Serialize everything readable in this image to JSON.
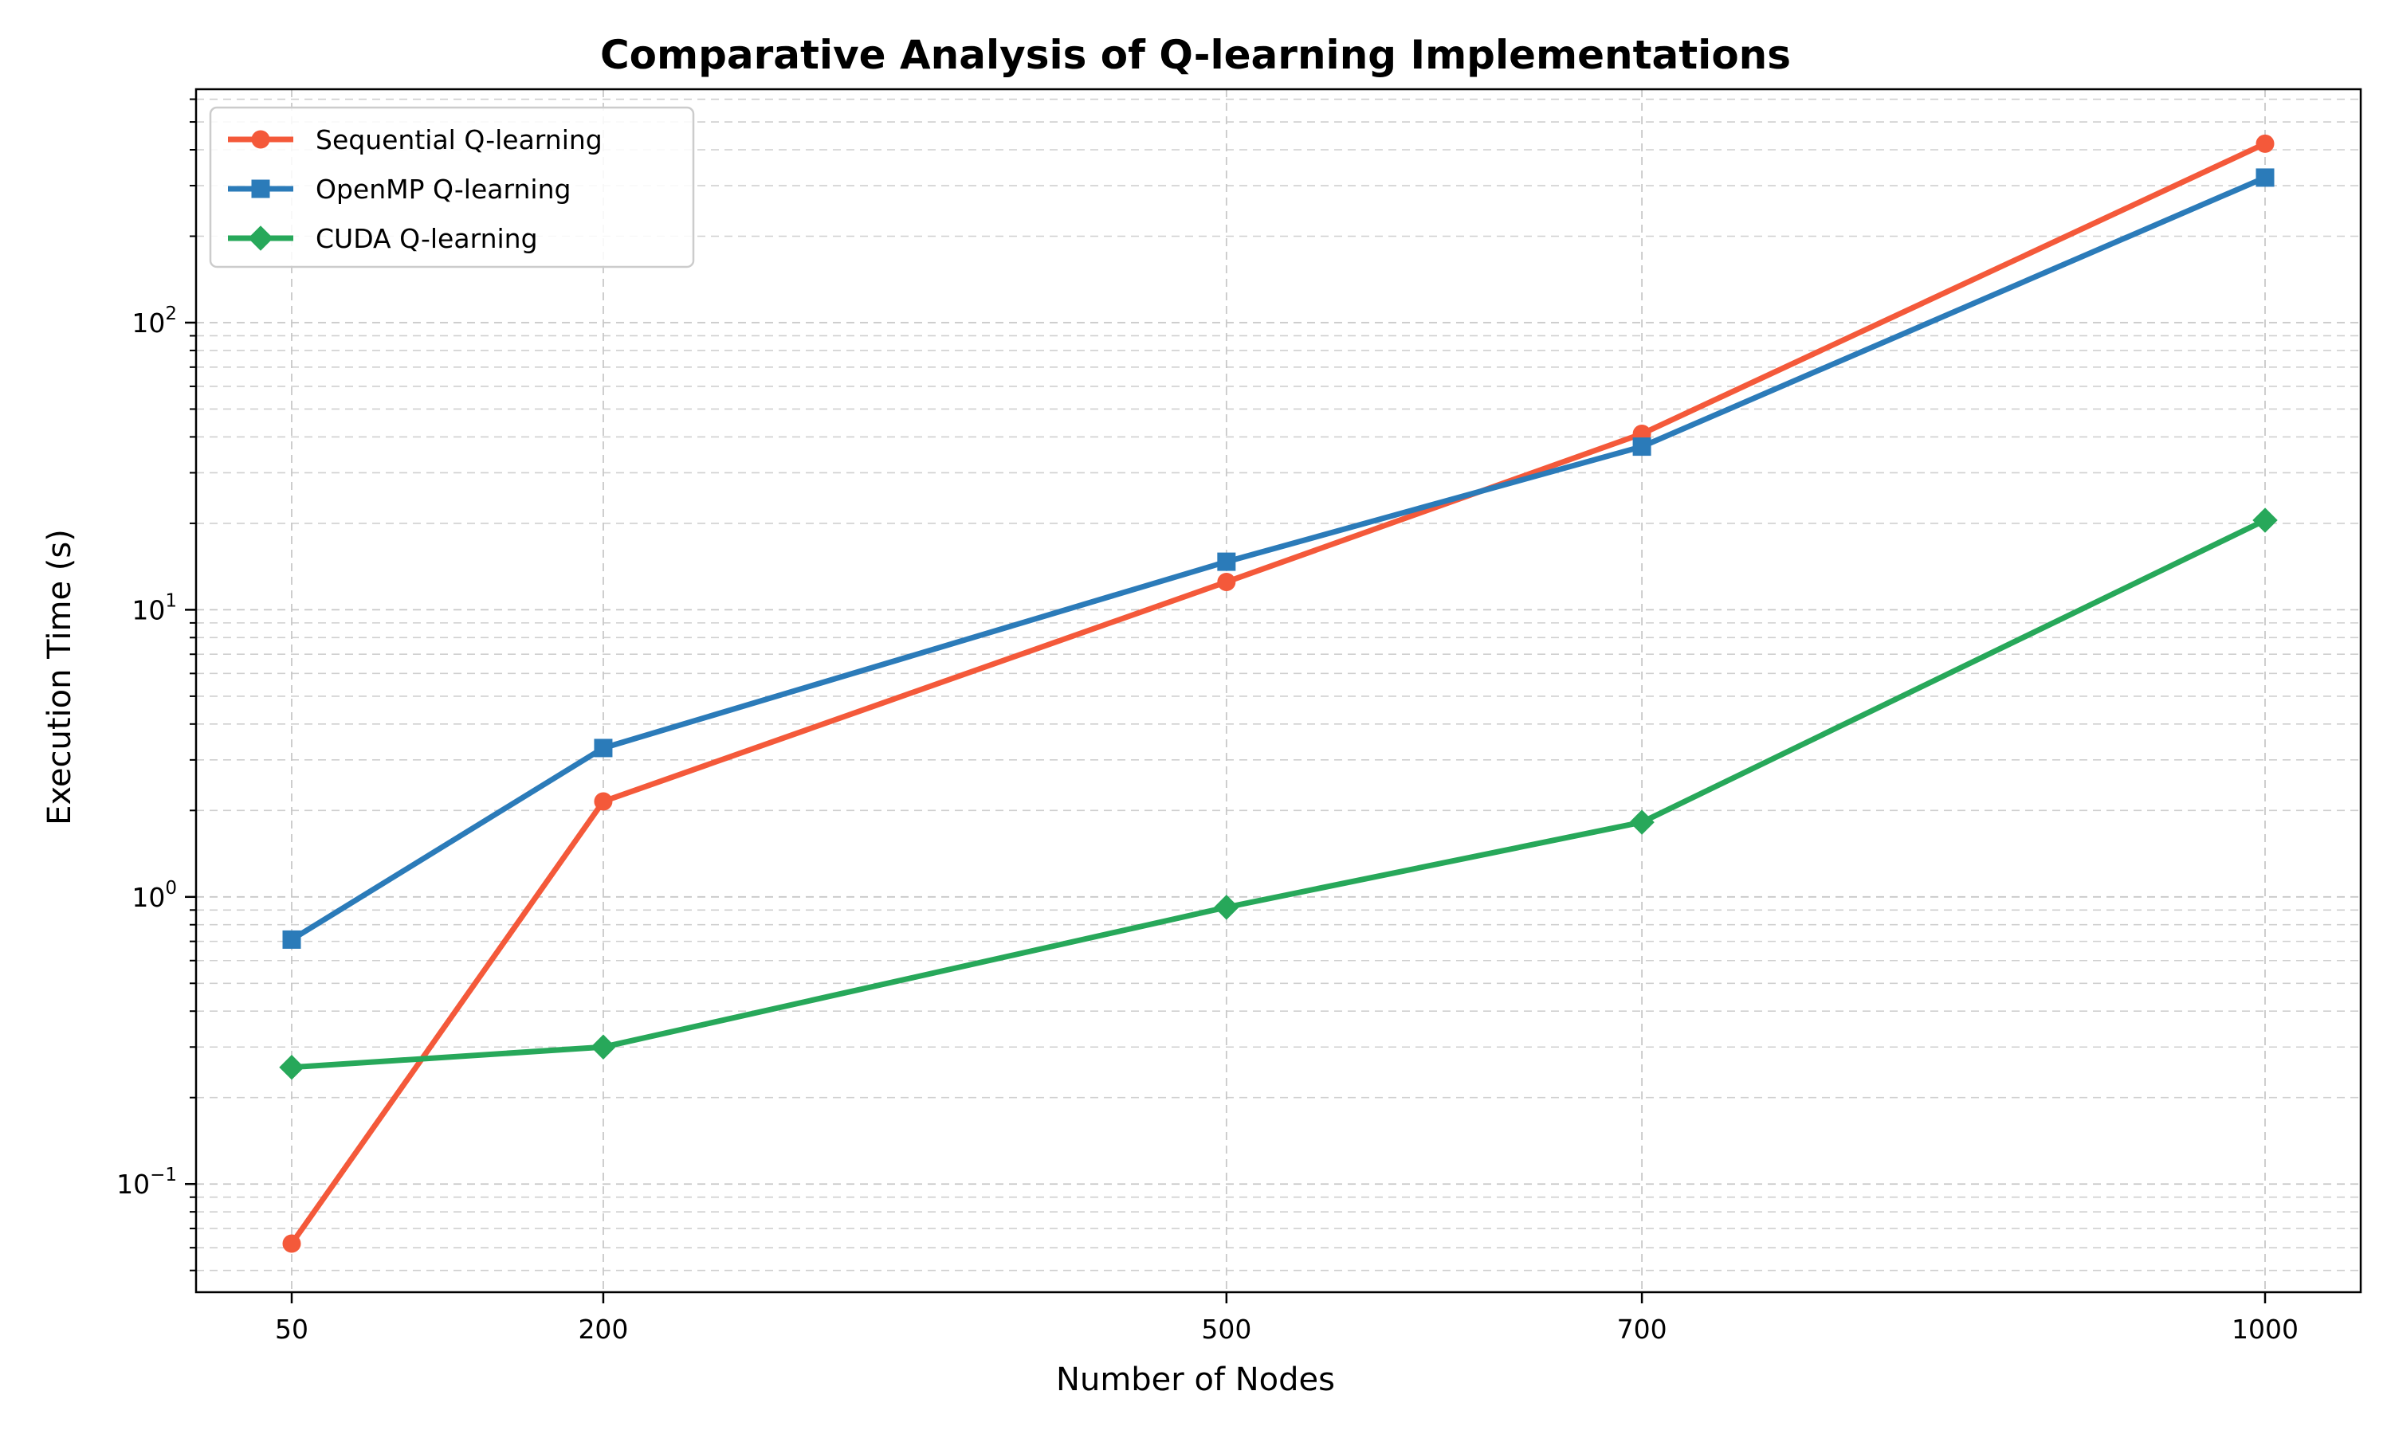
{
  "chart_data": {
    "type": "line",
    "title": "Comparative Analysis of Q-learning Implementations",
    "xlabel": "Number of Nodes",
    "ylabel": "Execution Time (s)",
    "x_tick_labels": [
      "50",
      "200",
      "500",
      "700",
      "1000"
    ],
    "y_scale": "log",
    "ylim": [
      0.042,
      650
    ],
    "y_major_ticks": [
      {
        "value": 0.1,
        "base": "10",
        "exp": "−1"
      },
      {
        "value": 1,
        "base": "10",
        "exp": "0"
      },
      {
        "value": 10,
        "base": "10",
        "exp": "1"
      },
      {
        "value": 100,
        "base": "10",
        "exp": "2"
      }
    ],
    "grid": true,
    "legend_position": "upper-left",
    "series": [
      {
        "name": "Sequential Q-learning",
        "color": "#F4593A",
        "marker": "circle",
        "values": [
          0.062,
          2.15,
          12.5,
          41,
          420
        ]
      },
      {
        "name": "OpenMP Q-learning",
        "color": "#2B7BB9",
        "marker": "square",
        "values": [
          0.71,
          3.3,
          14.7,
          37,
          320
        ]
      },
      {
        "name": "CUDA Q-learning",
        "color": "#27A85A",
        "marker": "diamond",
        "values": [
          0.255,
          0.3,
          0.92,
          1.82,
          20.5
        ]
      }
    ]
  }
}
